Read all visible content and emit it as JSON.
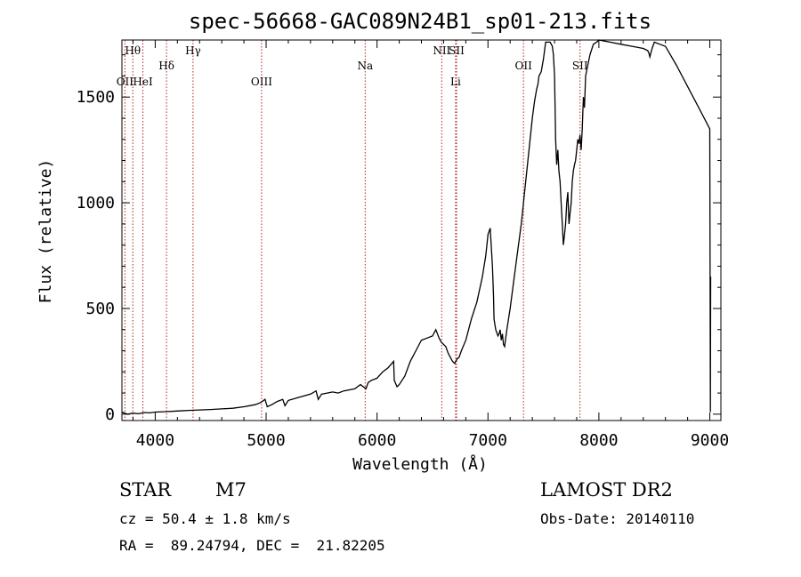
{
  "chart_data": {
    "type": "line",
    "title": "spec-56668-GAC089N24B1_sp01-213.fits",
    "xlabel": "Wavelength (Å)",
    "ylabel": "Flux (relative)",
    "xlim": [
      3700,
      9100
    ],
    "ylim": [
      -30,
      1770
    ],
    "xticks": [
      4000,
      5000,
      6000,
      7000,
      8000,
      9000
    ],
    "yticks": [
      0,
      500,
      1000,
      1500
    ],
    "xtick_labels": [
      "4000",
      "5000",
      "6000",
      "7000",
      "8000",
      "9000"
    ],
    "ytick_labels": [
      "0",
      "500",
      "1000",
      "1500"
    ],
    "series": [
      {
        "x": [
          3700,
          3750,
          3800,
          3850,
          3900,
          3950,
          4000,
          4100,
          4200,
          4300,
          4400,
          4500,
          4600,
          4700,
          4800,
          4900,
          4950,
          4990,
          5010,
          5050,
          5100,
          5150,
          5170,
          5200,
          5300,
          5400,
          5450,
          5470,
          5500,
          5550,
          5600,
          5650,
          5700,
          5800,
          5850,
          5900,
          5920,
          5950,
          6000,
          6050,
          6100,
          6150,
          6155,
          6180,
          6200,
          6250,
          6300,
          6350,
          6400,
          6450,
          6500,
          6530,
          6560,
          6580,
          6600,
          6620,
          6640,
          6660,
          6680,
          6700,
          6720,
          6740,
          6760,
          6800,
          6850,
          6900,
          6950,
          6980,
          7000,
          7020,
          7040,
          7050,
          7055,
          7070,
          7090,
          7100,
          7110,
          7120,
          7130,
          7140,
          7150,
          7160,
          7170,
          7200,
          7250,
          7300,
          7350,
          7400,
          7420,
          7440,
          7450,
          7460,
          7480,
          7500,
          7520,
          7540,
          7560,
          7580,
          7590,
          7600,
          7610,
          7620,
          7630,
          7640,
          7650,
          7660,
          7670,
          7680,
          7690,
          7700,
          7710,
          7720,
          7730,
          7740,
          7750,
          7760,
          7770,
          7780,
          7790,
          7800,
          7810,
          7820,
          7830,
          7840,
          7850,
          7860,
          7870,
          7880,
          7900,
          7920,
          7950,
          7980,
          8000,
          8100,
          8200,
          8300,
          8400,
          8440,
          8450,
          8460,
          8480,
          8500,
          8550,
          8600,
          8700,
          8800,
          8900,
          9000,
          9005,
          9008
        ],
        "y": [
          10,
          0,
          5,
          2,
          8,
          6,
          10,
          12,
          15,
          18,
          20,
          22,
          25,
          28,
          35,
          45,
          55,
          70,
          35,
          45,
          60,
          70,
          40,
          65,
          80,
          95,
          110,
          70,
          95,
          100,
          105,
          100,
          110,
          120,
          140,
          120,
          150,
          160,
          170,
          200,
          220,
          250,
          160,
          130,
          140,
          180,
          250,
          300,
          350,
          360,
          370,
          400,
          360,
          340,
          330,
          320,
          290,
          270,
          250,
          240,
          260,
          270,
          300,
          350,
          450,
          530,
          650,
          750,
          850,
          880,
          700,
          560,
          450,
          400,
          370,
          380,
          400,
          350,
          380,
          330,
          320,
          360,
          400,
          500,
          700,
          900,
          1150,
          1400,
          1480,
          1540,
          1560,
          1600,
          1620,
          1680,
          1760,
          1760,
          1760,
          1740,
          1700,
          1600,
          1300,
          1180,
          1250,
          1150,
          1100,
          1000,
          900,
          800,
          850,
          900,
          1000,
          1050,
          900,
          950,
          1000,
          1100,
          1150,
          1180,
          1200,
          1250,
          1300,
          1280,
          1320,
          1250,
          1350,
          1500,
          1450,
          1600,
          1650,
          1700,
          1750,
          1760,
          1770,
          1760,
          1750,
          1740,
          1730,
          1720,
          1710,
          1690,
          1730,
          1760,
          1750,
          1740,
          1650,
          1550,
          1450,
          1350,
          10,
          650
        ]
      }
    ],
    "reference_lines": [
      {
        "label": "Hθ",
        "x": 3798,
        "row": 1
      },
      {
        "label": "OII",
        "x": 3727,
        "row": 2
      },
      {
        "label": "HeI",
        "x": 3889,
        "row": 2
      },
      {
        "label": "Hδ",
        "x": 4102,
        "row": 1.5
      },
      {
        "label": "Hγ",
        "x": 4341,
        "row": 1
      },
      {
        "label": "OIII",
        "x": 4959,
        "row": 2
      },
      {
        "label": "Na",
        "x": 5893,
        "row": 1.5
      },
      {
        "label": "NII",
        "x": 6583,
        "row": 1
      },
      {
        "label": "SII",
        "x": 6717,
        "row": 1
      },
      {
        "label": "Li",
        "x": 6708,
        "row": 2
      },
      {
        "label": "OII",
        "x": 7320,
        "row": 1.5
      },
      {
        "label": "SII",
        "x": 7830,
        "row": 1.5
      }
    ]
  },
  "info": {
    "object_class": "STAR",
    "subclass": "M7",
    "survey": "LAMOST DR2",
    "cz": "cz = 50.4 ± 1.8 km/s",
    "obs_date": "Obs-Date: 20140110",
    "coords": "RA =  89.24794, DEC =  21.82205"
  }
}
